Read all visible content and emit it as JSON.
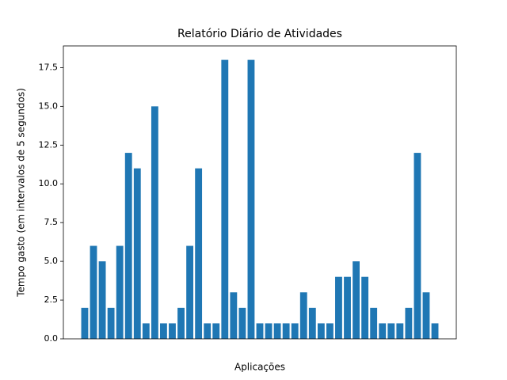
{
  "chart_data": {
    "type": "bar",
    "title": "Relatório Diário de Atividades",
    "x_label": "Aplicações",
    "y_label": "Tempo gasto (em intervalos de 5 segundos)",
    "categories": [
      null,
      null,
      null,
      null,
      null,
      null,
      null,
      null,
      null,
      null,
      null,
      null,
      null,
      null,
      null,
      null,
      null,
      null,
      null,
      null,
      null,
      null,
      null,
      null,
      null,
      null,
      null,
      null,
      null,
      null,
      null,
      null,
      null,
      null,
      null,
      null,
      null,
      null,
      null,
      null,
      null
    ],
    "values": [
      2,
      6,
      5,
      2,
      6,
      12,
      11,
      1,
      15,
      1,
      1,
      2,
      6,
      11,
      1,
      1,
      18,
      3,
      2,
      18,
      1,
      1,
      1,
      1,
      1,
      3,
      2,
      1,
      1,
      4,
      4,
      5,
      4,
      2,
      1,
      1,
      1,
      2,
      12,
      3,
      1
    ],
    "color": "#1f77b4",
    "ylim": [
      0,
      18.9
    ],
    "yticks": [
      {
        "value": 0,
        "label": "0.0"
      },
      2.5,
      {
        "value": 5,
        "label": "5.0"
      },
      7.5,
      {
        "value": 10,
        "label": "10.0"
      },
      12.5,
      {
        "value": 15,
        "label": "15.0"
      },
      17.5
    ],
    "grid": false
  }
}
